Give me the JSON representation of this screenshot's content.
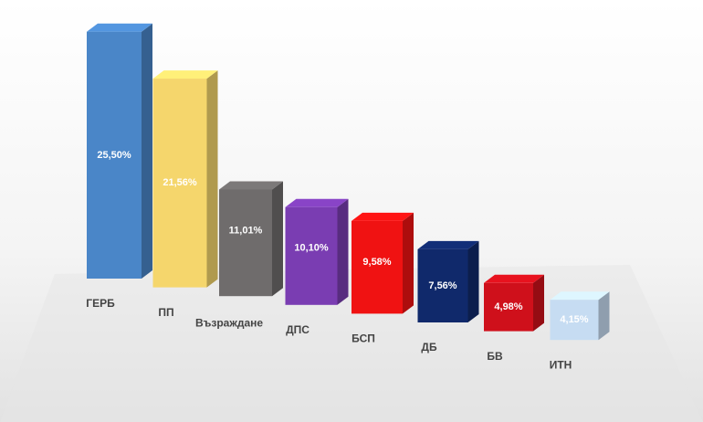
{
  "chart_data": {
    "type": "bar",
    "categories": [
      "ГЕРБ",
      "ПП",
      "Възраждане",
      "ДПС",
      "БСП",
      "ДБ",
      "БВ",
      "ИТН"
    ],
    "values": [
      25.5,
      21.56,
      11.01,
      10.1,
      9.58,
      7.56,
      4.98,
      4.15
    ],
    "value_labels": [
      "25,50%",
      "21,56%",
      "11,01%",
      "10,10%",
      "9,58%",
      "7,56%",
      "4,98%",
      "4,15%"
    ],
    "colors": [
      "#4a86c8",
      "#f5d66c",
      "#6f6c6c",
      "#7a3db2",
      "#f01212",
      "#10296b",
      "#cf101b",
      "#c6dcf2"
    ]
  }
}
